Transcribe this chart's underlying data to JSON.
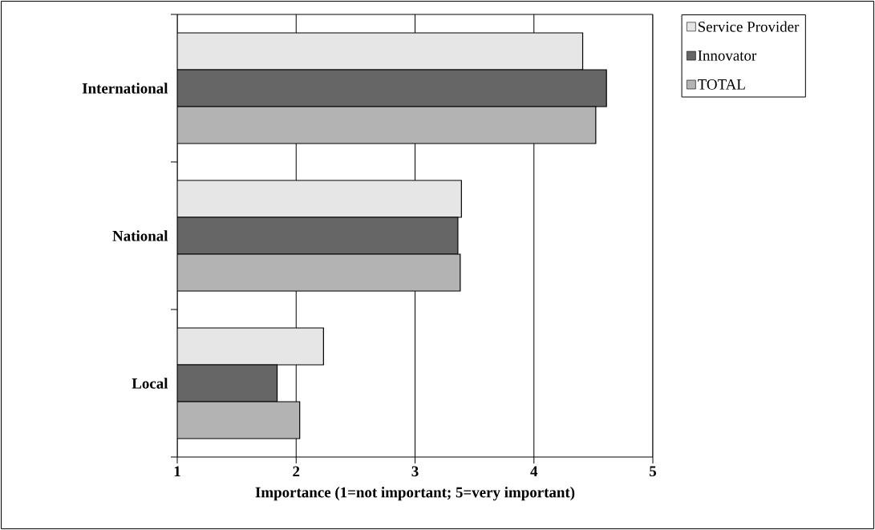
{
  "chart_data": {
    "type": "bar",
    "orientation": "horizontal",
    "xlabel": "Importance (1=not important; 5=very important)",
    "categories": [
      "International",
      "National",
      "Local"
    ],
    "series": [
      {
        "name": "Service Provider",
        "color": "#e6e6e6",
        "values": [
          4.41,
          3.39,
          2.23
        ]
      },
      {
        "name": "Innovator",
        "color": "#666666",
        "values": [
          4.61,
          3.36,
          1.84
        ]
      },
      {
        "name": "TOTAL",
        "color": "#b3b3b3",
        "values": [
          4.52,
          3.38,
          2.03
        ]
      }
    ],
    "xlim": [
      1,
      5
    ],
    "xticks": [
      1,
      2,
      3,
      4,
      5
    ],
    "grid": "x",
    "legend": "top right"
  }
}
